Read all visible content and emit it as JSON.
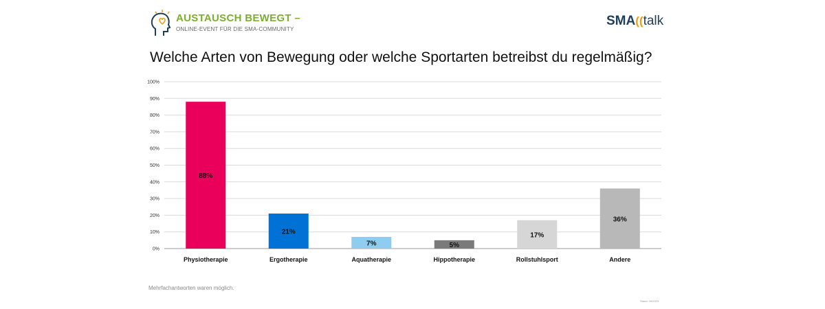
{
  "header": {
    "event_title": "AUSTAUSCH BEWEGT –",
    "event_subtitle": "ONLINE-EVENT FÜR DIE SMA-COMMUNITY",
    "brand_sma": "SMA",
    "brand_arc": "((",
    "brand_talk": "talk"
  },
  "footnote": "Mehrfachantworten waren möglich.",
  "source": "Stand: 09/2023",
  "chart_data": {
    "type": "bar",
    "title": "Welche Arten von Bewegung oder welche Sportarten betreibst du regelmäßig?",
    "categories": [
      "Physiotherapie",
      "Ergotherapie",
      "Aquatherapie",
      "Hippotherapie",
      "Rollstuhlsport",
      "Andere"
    ],
    "values": [
      88,
      21,
      7,
      5,
      17,
      36
    ],
    "value_labels": [
      "88%",
      "21%",
      "7%",
      "5%",
      "17%",
      "36%"
    ],
    "colors": [
      "#e8005a",
      "#0072d6",
      "#8ecdf0",
      "#7a7a7a",
      "#d6d6d6",
      "#b8b8b8"
    ],
    "ylim": [
      0,
      100
    ],
    "yticks": [
      "0%",
      "10%",
      "20%",
      "30%",
      "40%",
      "50%",
      "60%",
      "70%",
      "80%",
      "90%",
      "100%"
    ],
    "grid": true,
    "xlabel": "",
    "ylabel": ""
  }
}
